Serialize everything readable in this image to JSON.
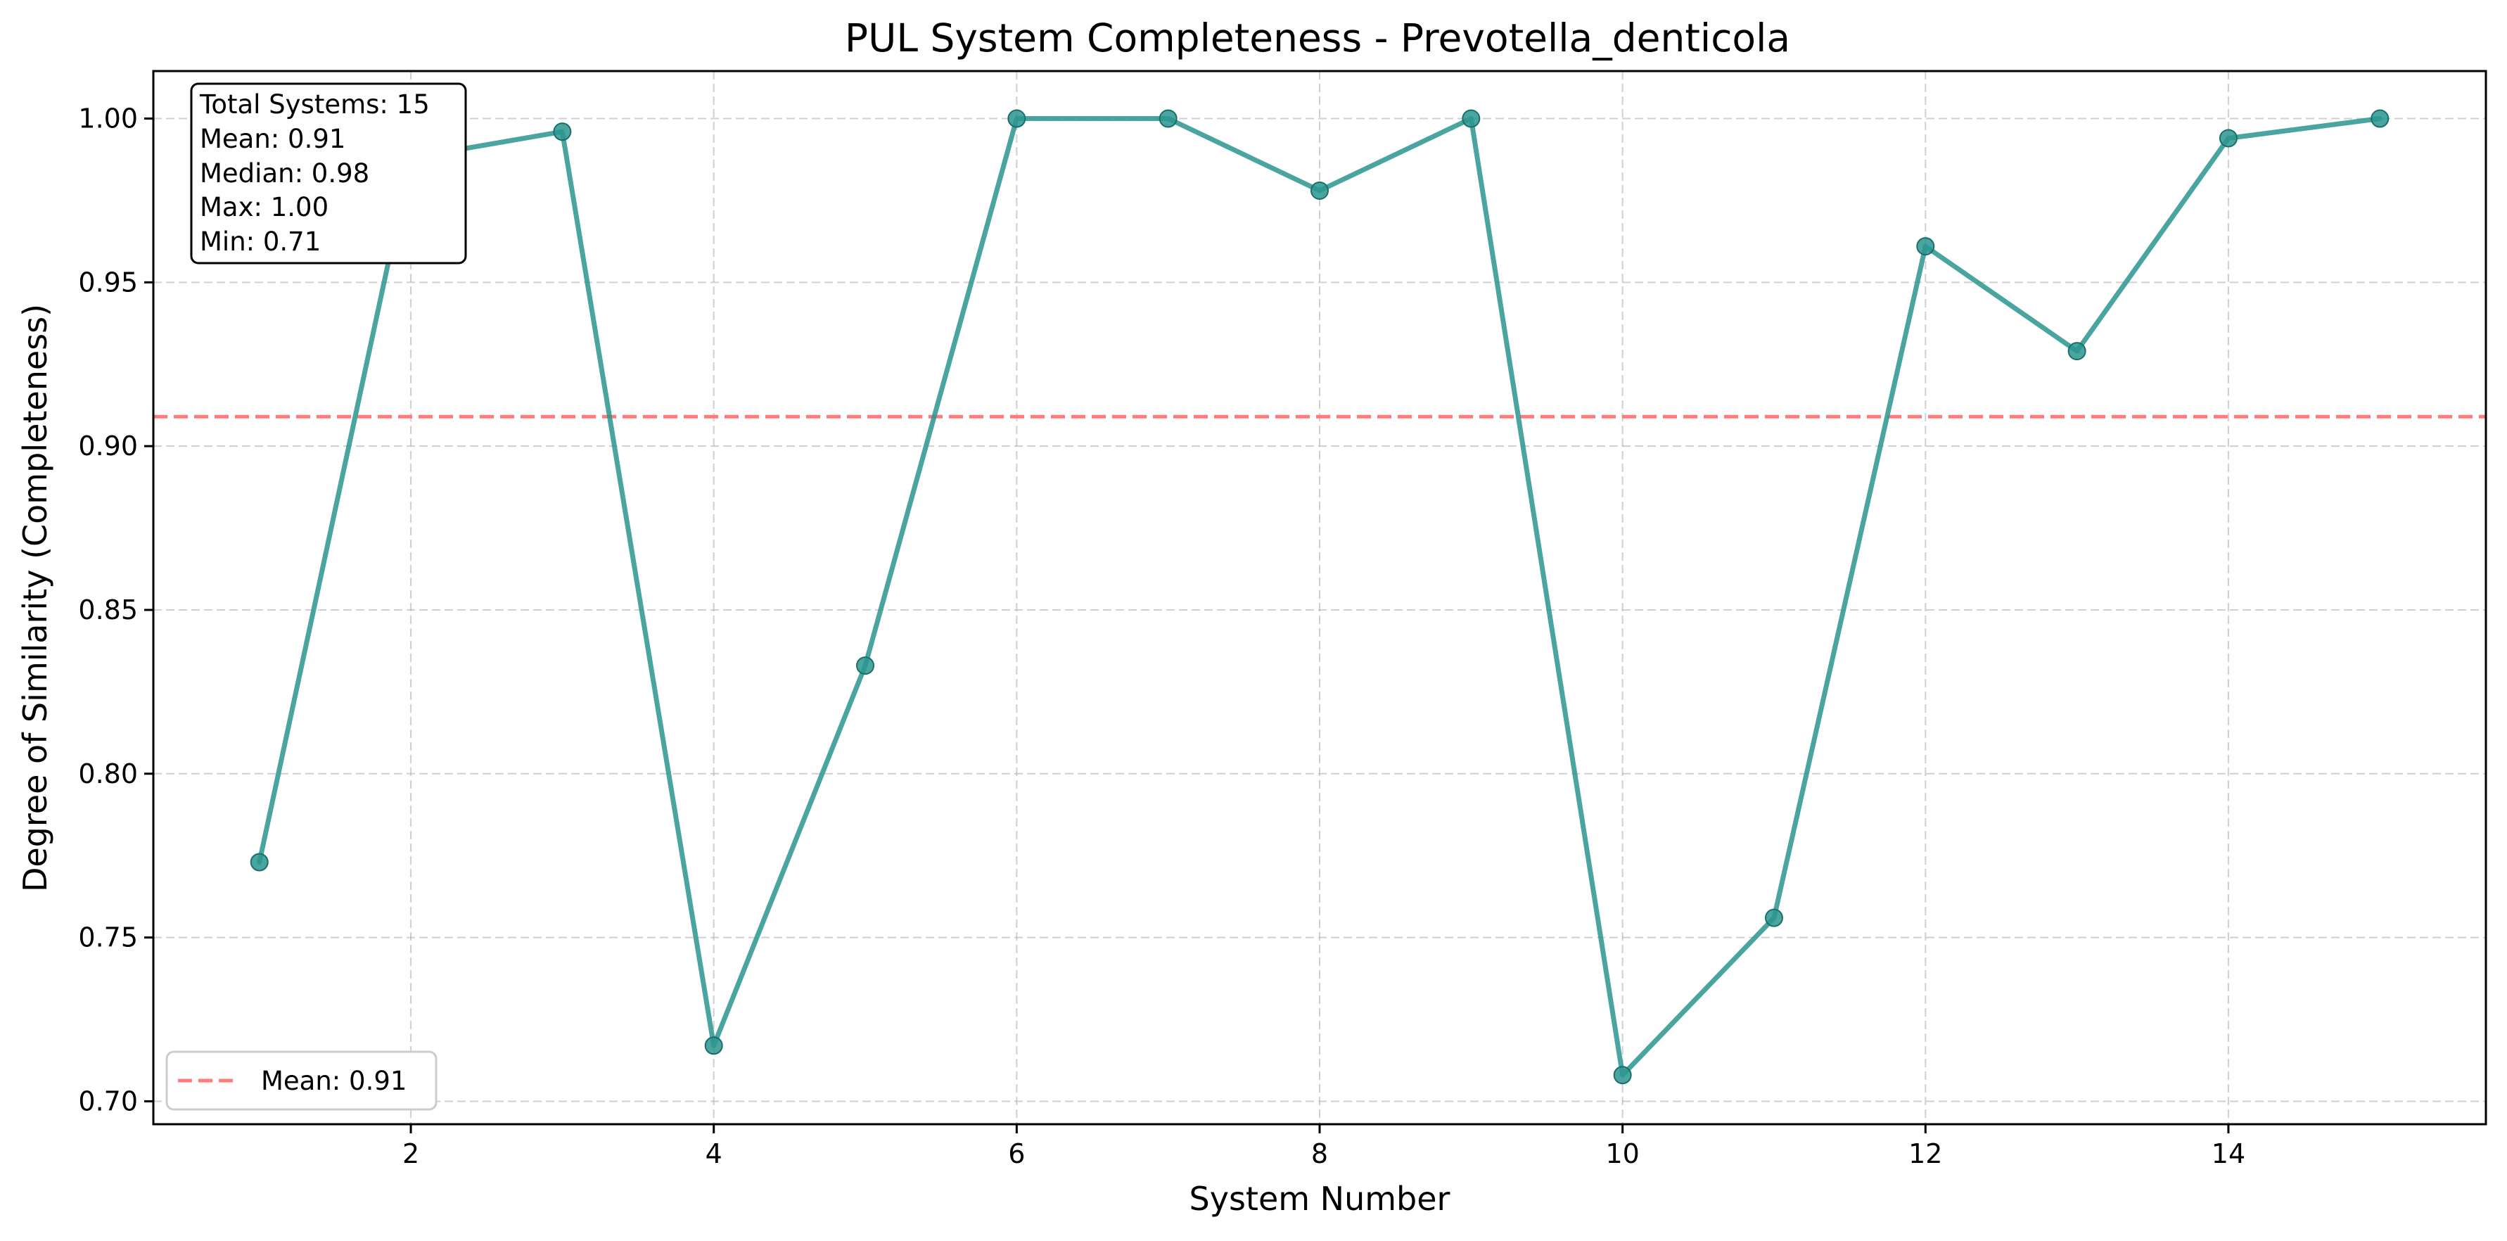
{
  "chart_data": {
    "type": "line",
    "title": "PUL System Completeness - Prevotella_denticola",
    "xlabel": "System Number",
    "ylabel": "Degree of Similarity (Completeness)",
    "xlim": [
      0.3,
      15.7
    ],
    "ylim": [
      0.693,
      1.0145
    ],
    "xticks": [
      2,
      4,
      6,
      8,
      10,
      12,
      14
    ],
    "xtick_labels": [
      "2",
      "4",
      "6",
      "8",
      "10",
      "12",
      "14"
    ],
    "yticks": [
      0.7,
      0.75,
      0.8,
      0.85,
      0.9,
      0.95,
      1.0
    ],
    "ytick_labels": [
      "0.70",
      "0.75",
      "0.80",
      "0.85",
      "0.90",
      "0.95",
      "1.00"
    ],
    "grid": true,
    "series": [
      {
        "x": [
          1,
          2,
          3,
          4,
          5,
          6,
          7,
          8,
          9,
          10,
          11,
          12,
          13,
          14,
          15
        ],
        "values": [
          0.773,
          0.988,
          0.996,
          0.717,
          0.833,
          1.0,
          1.0,
          0.978,
          1.0,
          0.708,
          0.756,
          0.961,
          0.929,
          0.994,
          1.0
        ],
        "color": "#2a9590"
      }
    ],
    "mean_line": {
      "value": 0.909,
      "color": "#ff7b7b",
      "label": "Mean: 0.91"
    },
    "stats_box": {
      "lines": [
        "Total Systems: 15",
        "Mean: 0.91",
        "Median: 0.98",
        "Max: 1.00",
        "Min: 0.71"
      ],
      "placement": "top-left"
    },
    "legend": {
      "placement": "bottom-left",
      "entries": [
        "Mean: 0.91"
      ]
    }
  }
}
